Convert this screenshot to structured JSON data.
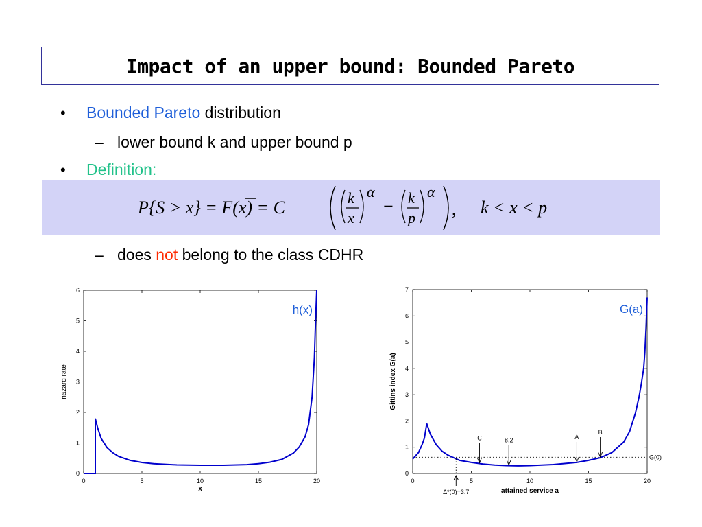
{
  "slide": {
    "title": "Impact of an upper bound: Bounded Pareto",
    "bullets": {
      "b1_highlight": "Bounded Pareto",
      "b1_rest": " distribution",
      "b1_sub_dash": "–",
      "b1_sub": "lower bound k and upper bound p",
      "b2": "Definition:",
      "b3_dash": "–",
      "b3_pre": "does ",
      "b3_not": "not",
      "b3_post": " belong to the class CDHR",
      "bullet_glyph": "•"
    },
    "formula": {
      "lhs": "P{S > x} = F(x) = C",
      "k": "k",
      "x": "x",
      "p": "p",
      "alpha": "α",
      "minus": "−",
      "comma": ",",
      "range": "k < x < p"
    }
  },
  "colors": {
    "accent_blue": "#1f5fd9",
    "definition_green": "#22c28a",
    "not_red": "#ff2a00",
    "formula_band": "#d3d3f7",
    "curve_blue": "#0000cc"
  },
  "chart_data": [
    {
      "type": "line",
      "title": "h(x)",
      "xlabel": "x",
      "ylabel": "hazard rate",
      "xlim": [
        0,
        20
      ],
      "ylim": [
        0,
        6
      ],
      "xticks": [
        0,
        5,
        10,
        15,
        20
      ],
      "yticks": [
        0,
        1,
        2,
        3,
        4,
        5,
        6
      ],
      "series": [
        {
          "x": [
            0,
            1,
            1,
            1.2,
            1.5,
            2,
            2.5,
            3,
            4,
            5,
            6,
            8,
            10,
            12,
            14,
            15,
            16,
            17,
            18,
            18.5,
            19,
            19.3,
            19.6,
            19.8,
            19.9,
            20
          ],
          "y": [
            0,
            0,
            1.8,
            1.5,
            1.15,
            0.85,
            0.68,
            0.56,
            0.43,
            0.36,
            0.32,
            0.28,
            0.27,
            0.27,
            0.29,
            0.32,
            0.37,
            0.46,
            0.67,
            0.87,
            1.2,
            1.6,
            2.5,
            3.8,
            5.0,
            6.0
          ]
        }
      ]
    },
    {
      "type": "line",
      "title": "G(a)",
      "xlabel": "attained service a",
      "ylabel": "Gittins index G(a)",
      "xlim": [
        0,
        20
      ],
      "ylim": [
        0,
        7
      ],
      "xticks": [
        0,
        5,
        10,
        15,
        20
      ],
      "yticks": [
        0,
        1,
        2,
        3,
        4,
        5,
        6,
        7
      ],
      "series": [
        {
          "x": [
            0,
            0.5,
            0.8,
            1,
            1.2,
            1.5,
            2,
            2.5,
            3,
            4,
            5,
            6,
            7,
            8,
            9,
            10,
            12,
            14,
            15,
            16,
            17,
            18,
            18.5,
            19,
            19.3,
            19.5,
            19.7,
            19.8,
            19.9,
            20
          ],
          "y": [
            0.55,
            0.8,
            1.1,
            1.35,
            1.9,
            1.5,
            1.1,
            0.85,
            0.7,
            0.5,
            0.42,
            0.36,
            0.32,
            0.3,
            0.29,
            0.3,
            0.34,
            0.42,
            0.5,
            0.6,
            0.8,
            1.2,
            1.6,
            2.3,
            2.9,
            3.4,
            4.0,
            4.6,
            5.5,
            6.7
          ]
        }
      ],
      "reference_line": {
        "label": "G(0)",
        "y": 0.62
      },
      "annotations": [
        {
          "label": "C",
          "x": 5.7
        },
        {
          "label": "8.2",
          "x": 8.2
        },
        {
          "label": "A",
          "x": 14
        },
        {
          "label": "B",
          "x": 16
        },
        {
          "label": "Δ*(0)=3.7",
          "x": 3.7
        }
      ]
    }
  ]
}
